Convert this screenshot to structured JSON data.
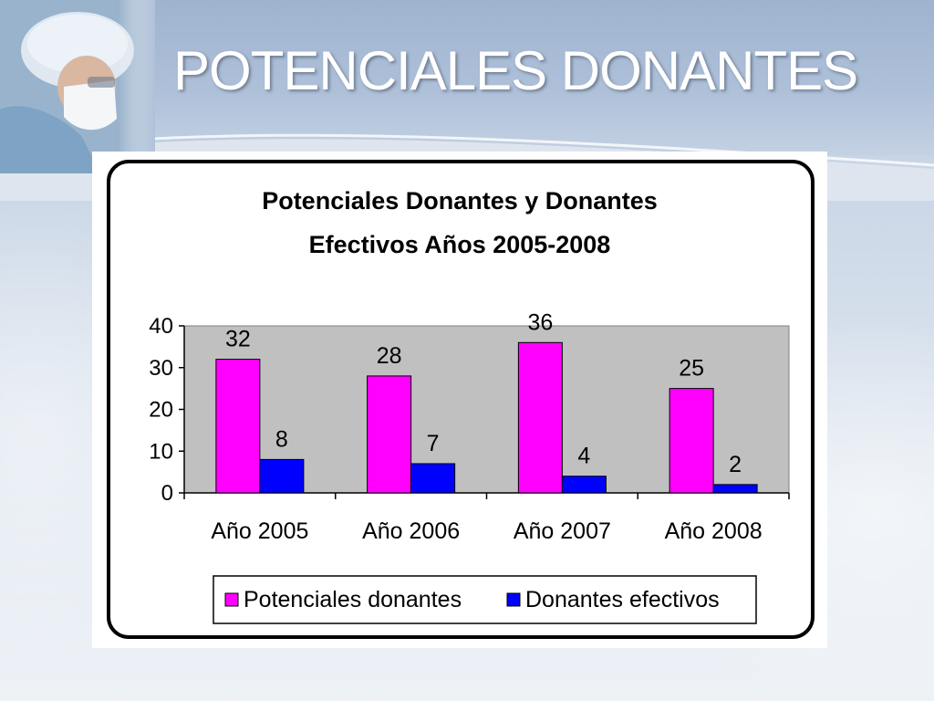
{
  "slide": {
    "title": "POTENCIALES DONANTES"
  },
  "colors": {
    "potenciales": "#ff00ff",
    "efectivos": "#0000ff",
    "plot_background": "#c0c0c0"
  },
  "chart_data": {
    "type": "bar",
    "title_lines": [
      "Potenciales Donantes y Donantes",
      "Efectivos Años 2005-2008"
    ],
    "categories": [
      "Año 2005",
      "Año 2006",
      "Año 2007",
      "Año 2008"
    ],
    "series": [
      {
        "name": "Potenciales donantes",
        "values": [
          32,
          28,
          36,
          25
        ]
      },
      {
        "name": "Donantes efectivos",
        "values": [
          8,
          7,
          4,
          2
        ]
      }
    ],
    "ylim": [
      0,
      40
    ],
    "yticks": [
      0,
      10,
      20,
      30,
      40
    ],
    "grid": false,
    "legend_position": "bottom",
    "data_labels": true
  }
}
